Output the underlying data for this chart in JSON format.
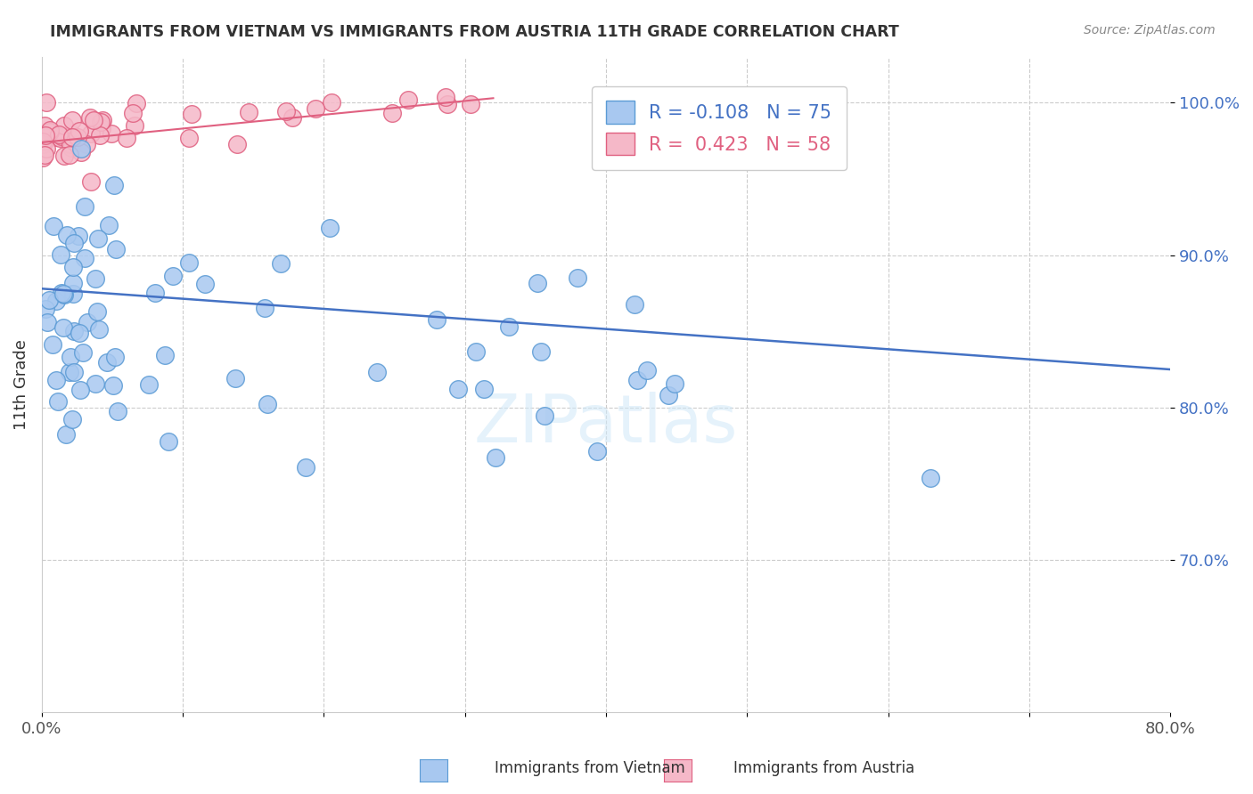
{
  "title": "IMMIGRANTS FROM VIETNAM VS IMMIGRANTS FROM AUSTRIA 11TH GRADE CORRELATION CHART",
  "source": "Source: ZipAtlas.com",
  "ylabel": "11th Grade",
  "xlim": [
    0.0,
    0.8
  ],
  "ylim": [
    0.6,
    1.03
  ],
  "yticks": [
    0.7,
    0.8,
    0.9,
    1.0
  ],
  "ytick_labels": [
    "70.0%",
    "80.0%",
    "90.0%",
    "100.0%"
  ],
  "xtick_positions": [
    0.0,
    0.1,
    0.2,
    0.3,
    0.4,
    0.5,
    0.6,
    0.7,
    0.8
  ],
  "xtick_labels": [
    "0.0%",
    "",
    "",
    "",
    "",
    "",
    "",
    "",
    "80.0%"
  ],
  "vietnam_color": "#a8c8f0",
  "vietnam_edge_color": "#5b9bd5",
  "austria_color": "#f5b8c8",
  "austria_edge_color": "#e06080",
  "trend_line_color": "#4472c4",
  "austria_trend_color": "#e06080",
  "R_vietnam": -0.108,
  "N_vietnam": 75,
  "R_austria": 0.423,
  "N_austria": 58,
  "legend_label_vietnam": "Immigrants from Vietnam",
  "legend_label_austria": "Immigrants from Austria",
  "watermark": "ZIPatlas",
  "viet_trend_x": [
    0.0,
    0.8
  ],
  "viet_trend_y": [
    0.878,
    0.825
  ],
  "aust_trend_x": [
    0.0,
    0.32
  ],
  "aust_trend_y": [
    0.974,
    1.003
  ]
}
